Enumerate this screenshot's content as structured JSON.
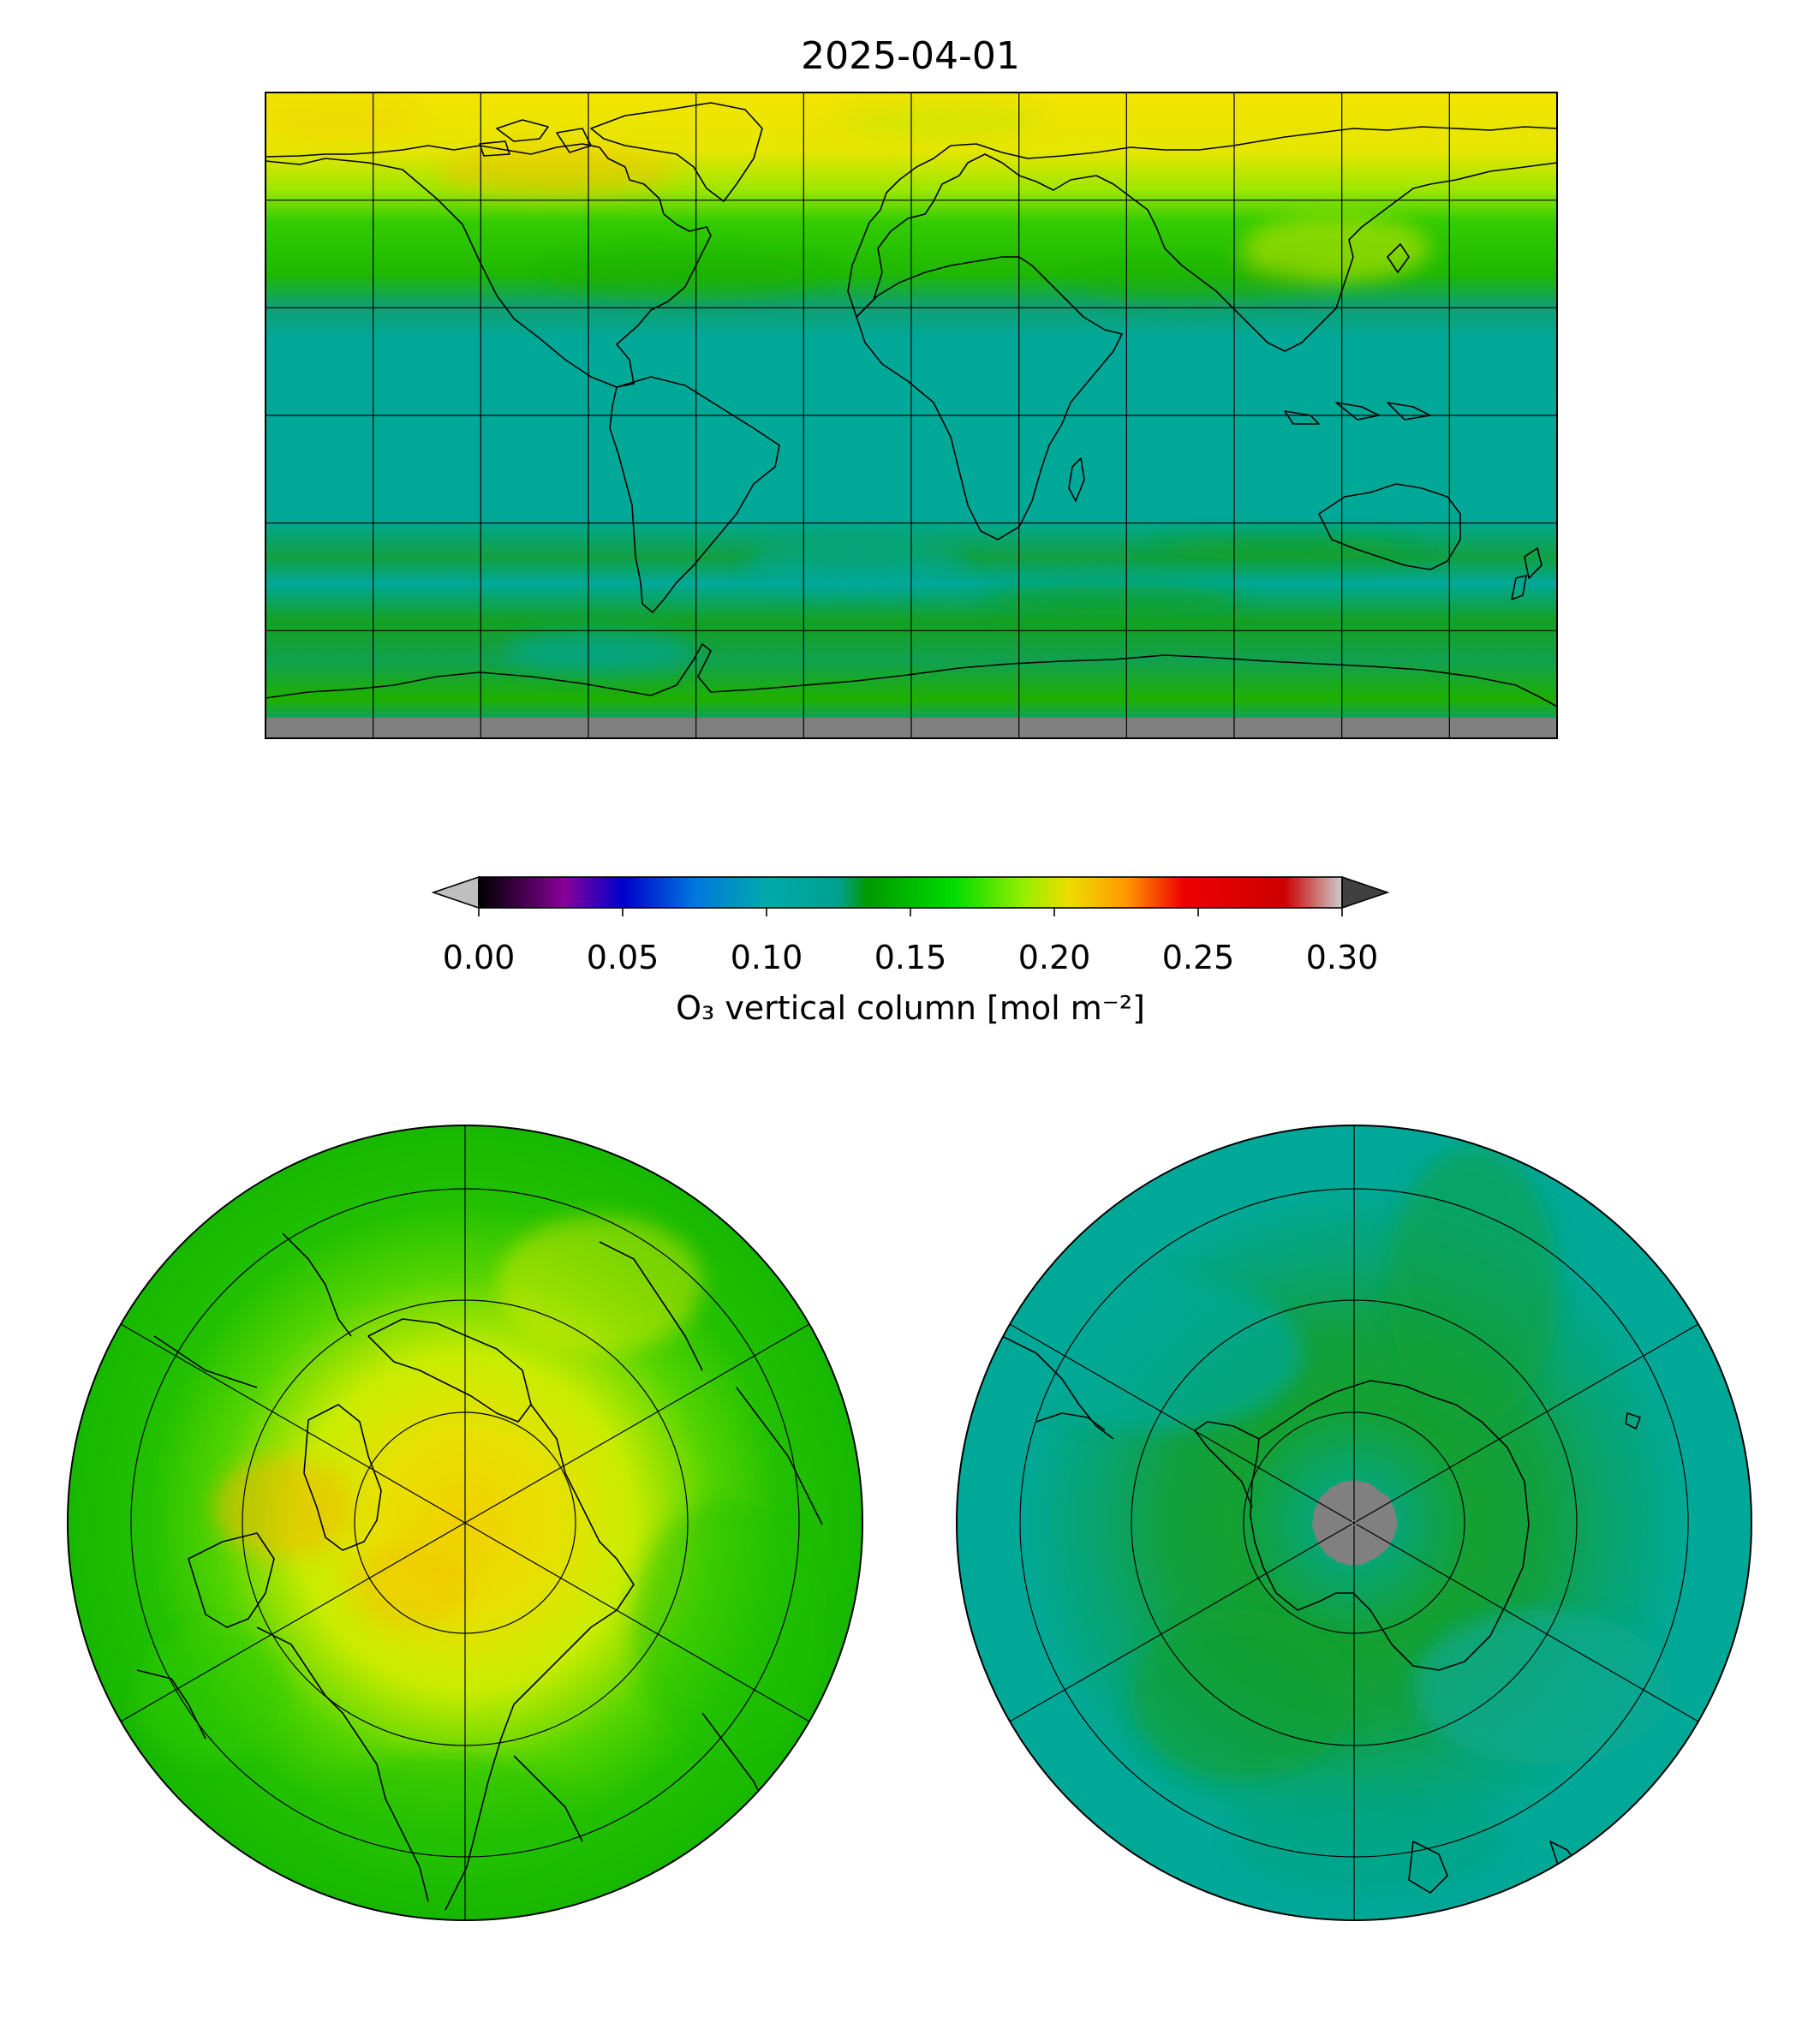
{
  "title": "2025-04-01",
  "colorbar": {
    "label": "O₃ vertical column [mol m⁻²]",
    "ticks": [
      "0.00",
      "0.05",
      "0.10",
      "0.15",
      "0.20",
      "0.25",
      "0.30"
    ],
    "range": [
      0.0,
      0.3
    ],
    "extend": "both",
    "under_color": "#bfbfbf",
    "over_color": "#404040",
    "stops": [
      {
        "v": 0.0,
        "c": "#000000"
      },
      {
        "v": 0.03,
        "c": "#880099"
      },
      {
        "v": 0.05,
        "c": "#0000cc"
      },
      {
        "v": 0.075,
        "c": "#0077dd"
      },
      {
        "v": 0.1,
        "c": "#00aaaa"
      },
      {
        "v": 0.125,
        "c": "#00a090"
      },
      {
        "v": 0.135,
        "c": "#009900"
      },
      {
        "v": 0.165,
        "c": "#00dd00"
      },
      {
        "v": 0.19,
        "c": "#99ee00"
      },
      {
        "v": 0.205,
        "c": "#eedd00"
      },
      {
        "v": 0.225,
        "c": "#ff9900"
      },
      {
        "v": 0.245,
        "c": "#ee0000"
      },
      {
        "v": 0.28,
        "c": "#cc0000"
      },
      {
        "v": 0.3,
        "c": "#cccccc"
      }
    ]
  },
  "panels": [
    {
      "name": "global",
      "projection": "plate-carree",
      "gridlines": true,
      "missing_color": "#808080"
    },
    {
      "name": "north-pole",
      "projection": "north-polar-stereographic",
      "gridlines": true
    },
    {
      "name": "south-pole",
      "projection": "south-polar-stereographic",
      "gridlines": true,
      "missing_color": "#808080"
    }
  ]
}
